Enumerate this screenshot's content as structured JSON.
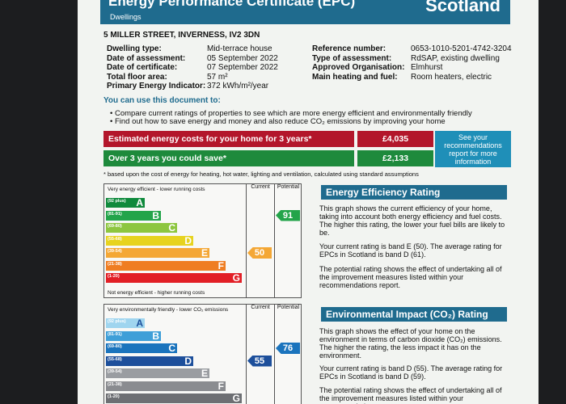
{
  "header": {
    "title": "Energy Performance Certificate (EPC)",
    "subtitle": "Dwellings",
    "region": "Scotland"
  },
  "address": "5 MILLER STREET, INVERNESS, IV2 3DN",
  "details_left": [
    {
      "label": "Dwelling type:",
      "value": "Mid-terrace house"
    },
    {
      "label": "Date of assessment:",
      "value": "05 September 2022"
    },
    {
      "label": "Date of certificate:",
      "value": "07 September 2022"
    },
    {
      "label": "Total floor area:",
      "value": "57 m²"
    },
    {
      "label": "Primary Energy Indicator:",
      "value": "372 kWh/m²/year"
    }
  ],
  "details_right": [
    {
      "label": "Reference number:",
      "value": "0653-1010-5201-4742-3204"
    },
    {
      "label": "Type of assessment:",
      "value": "RdSAP, existing dwelling"
    },
    {
      "label": "Approved Organisation:",
      "value": "Elmhurst"
    },
    {
      "label": "Main heating and fuel:",
      "value": "Room heaters, electric"
    }
  ],
  "use_heading": "You can use this document to:",
  "bullets": [
    "• Compare current ratings of properties to see which are more energy efficient and environmentally friendly",
    "• Find out how to save energy and money and also reduce CO₂ emissions by improving your home"
  ],
  "costs": [
    {
      "label": "Estimated energy costs for your home for 3 years*",
      "value": "£4,035",
      "color": "#b3162b"
    },
    {
      "label": "Over 3 years you could save*",
      "value": "£2,133",
      "color": "#1e8a3c"
    }
  ],
  "recommendations_link": "See your recommendations report for more information",
  "footnote": "* based upon the cost of energy for heating, hot water, lighting and ventilation, calculated using standard assumptions",
  "energy_chart": {
    "top_label": "Very energy efficient - lower running costs",
    "bottom_label": "Not energy efficient - higher running costs",
    "col_current": "Current",
    "col_potential": "Potential",
    "bands": [
      {
        "range": "(92 plus)",
        "letter": "A",
        "color": "#0f8a3c"
      },
      {
        "range": "(81-91)",
        "letter": "B",
        "color": "#23a44a"
      },
      {
        "range": "(69-80)",
        "letter": "C",
        "color": "#8dc63f"
      },
      {
        "range": "(55-68)",
        "letter": "D",
        "color": "#e7d31f"
      },
      {
        "range": "(39-54)",
        "letter": "E",
        "color": "#f4a735"
      },
      {
        "range": "(21-38)",
        "letter": "F",
        "color": "#ef7d22"
      },
      {
        "range": "(1-20)",
        "letter": "G",
        "color": "#e21f26"
      }
    ],
    "current": {
      "value": "50",
      "band_index": 4,
      "color": "#f4a735"
    },
    "potential": {
      "value": "91",
      "band_index": 1,
      "color": "#23a44a"
    }
  },
  "energy_text": {
    "title": "Energy Efficiency Rating",
    "p1": "This graph shows the current efficiency of your home, taking into account both energy efficiency and fuel costs. The higher this rating, the lower your fuel bills are likely to be.",
    "p2": "Your current rating is band E (50). The average rating for EPCs in Scotland is band D (61).",
    "p3": "The potential rating shows the effect of undertaking all of the improvement measures listed within your recommendations report."
  },
  "env_chart": {
    "top_label": "Very environmentally friendly - lower CO₂ emissions",
    "col_current": "Current",
    "col_potential": "Potential",
    "bands": [
      {
        "range": "(92 plus)",
        "letter": "A",
        "color": "#9fd5ef"
      },
      {
        "range": "(81-91)",
        "letter": "B",
        "color": "#3f9fd8"
      },
      {
        "range": "(69-80)",
        "letter": "C",
        "color": "#1b74bd"
      },
      {
        "range": "(55-68)",
        "letter": "D",
        "color": "#1d4f9b"
      },
      {
        "range": "(39-54)",
        "letter": "E",
        "color": "#9a9da1"
      },
      {
        "range": "(21-38)",
        "letter": "F",
        "color": "#8a8c90"
      },
      {
        "range": "(1-20)",
        "letter": "G",
        "color": "#6d6f73"
      }
    ],
    "current": {
      "value": "55",
      "band_index": 3,
      "color": "#1d4f9b"
    },
    "potential": {
      "value": "76",
      "band_index": 2,
      "color": "#1b74bd"
    }
  },
  "env_text": {
    "title": "Environmental Impact (CO₂) Rating",
    "p1": "This graph shows the effect of your home on the environment in terms of carbon dioxide (CO₂) emissions. The higher the rating, the less impact it has on the environment.",
    "p2": "Your current rating is band D (55). The average rating for EPCs in Scotland is band D (59).",
    "p3": "The potential rating shows the effect of undertaking all of the improvement measures listed within your recommendations report."
  }
}
